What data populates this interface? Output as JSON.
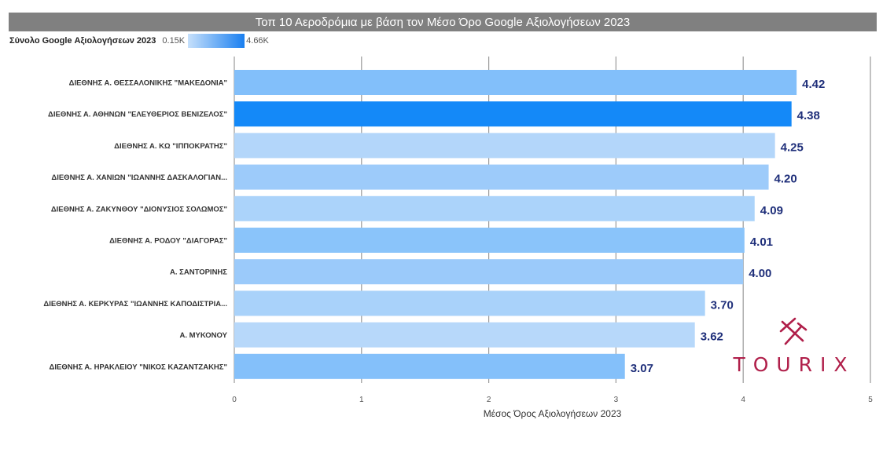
{
  "chart_data": {
    "type": "bar",
    "orientation": "horizontal",
    "title": "Τοπ 10 Αεροδρόμια με βάση τον Μέσο Όρο Google Αξιολογήσεων 2023",
    "xlabel": "Μέσος Όρος Αξιολογήσεων 2023",
    "ylabel": "",
    "xlim": [
      0,
      5
    ],
    "x_ticks": [
      "0",
      "1",
      "2",
      "3",
      "4",
      "5"
    ],
    "grid": true,
    "categories": [
      "ΔΙΕΘΝΗΣ Α. ΘΕΣΣΑΛΟΝΙΚΗΣ \"ΜΑΚΕΔΟΝΙΑ\"",
      "ΔΙΕΘΝΗΣ Α. ΑΘΗΝΩΝ \"ΕΛΕΥΘΕΡΙΟΣ ΒΕΝΙΖΕΛΟΣ\"",
      "ΔΙΕΘΝΗΣ Α. ΚΩ \"ΙΠΠΟΚΡΑΤΗΣ\"",
      "ΔΙΕΘΝΗΣ Α. ΧΑΝΙΩΝ \"ΙΩΑΝΝΗΣ ΔΑΣΚΑΛΟΓΙΑΝ...",
      "ΔΙΕΘΝΗΣ Α. ΖΑΚΥΝΘΟΥ \"ΔΙΟΝΥΣΙΟΣ ΣΟΛΩΜΟΣ\"",
      "ΔΙΕΘΝΗΣ Α. ΡΟΔΟΥ \"ΔΙΑΓΟΡΑΣ\"",
      "Α. ΣΑΝΤΟΡΙΝΗΣ",
      "ΔΙΕΘΝΗΣ Α. ΚΕΡΚΥΡΑΣ \"ΙΩΑΝΝΗΣ ΚΑΠΟΔΙΣΤΡΙΑ...",
      "Α. ΜΥΚΟΝΟΥ",
      "ΔΙΕΘΝΗΣ Α. ΗΡΑΚΛΕΙΟΥ \"ΝΙΚΟΣ ΚΑΖΑΝΤΖΑΚΗΣ\""
    ],
    "values": [
      4.42,
      4.38,
      4.25,
      4.2,
      4.09,
      4.01,
      4.0,
      3.7,
      3.62,
      3.07
    ],
    "value_labels": [
      "4.42",
      "4.38",
      "4.25",
      "4.20",
      "4.09",
      "4.01",
      "4.00",
      "3.70",
      "3.62",
      "3.07"
    ],
    "bar_colors": [
      "#82bffa",
      "#1489f8",
      "#b3d6fa",
      "#9dcbfa",
      "#abd3fa",
      "#8ac4fa",
      "#9bcafa",
      "#a9d2fa",
      "#b7d8fa",
      "#84c0fa"
    ],
    "color_legend": {
      "label": "Σύνολο Google Αξιολογήσεων 2023",
      "min": "0.15K",
      "max": "4.66K",
      "color_min": "#c6e0fb",
      "color_max": "#1a7ff0"
    }
  },
  "logo": {
    "text": "TOURIX",
    "color": "#b01f4a"
  }
}
